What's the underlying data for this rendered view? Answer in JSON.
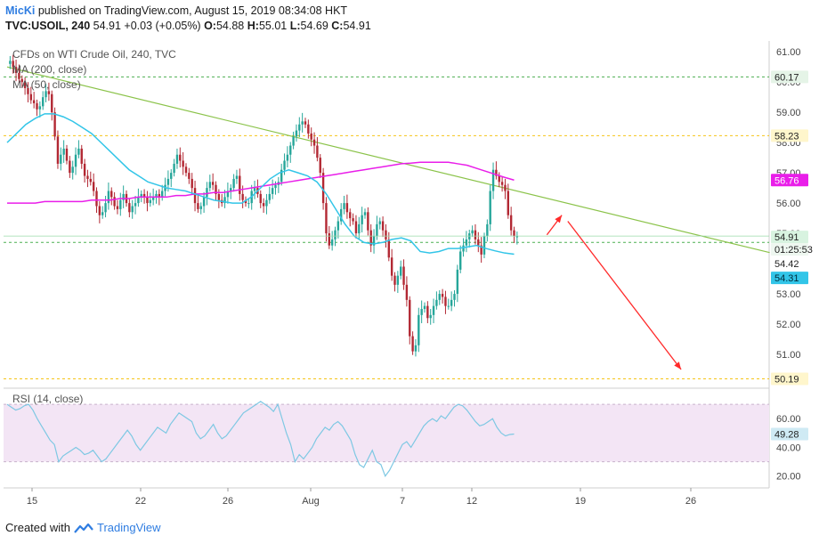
{
  "header": {
    "user": "MicKi",
    "published": "published on TradingView.com, August 15, 2019 08:34:08 HKT",
    "symbol": "TVC:USOIL, 240",
    "last": "54.91",
    "change": "+0.03 (+0.05%)",
    "o_label": "O:",
    "o": "54.88",
    "h_label": "H:",
    "h": "55.01",
    "l_label": "L:",
    "l": "54.69",
    "c_label": "C:",
    "c": "54.91"
  },
  "legend": {
    "instrument": "CFDs on WTI Crude Oil, 240, TVC",
    "ma200": "MA (200, close)",
    "ma50": "MA (50, close)",
    "rsi": "RSI (14, close)"
  },
  "footer": {
    "created_with": "Created with",
    "brand": "TradingView"
  },
  "colors": {
    "up": "#26a69a",
    "down": "#b22833",
    "ma200": "#e91ee9",
    "ma50": "#32c5e8",
    "trendline": "#8bc34a",
    "arrow": "#ff2a2a",
    "level_yellow": "#f5c518",
    "level_green": "#4caf50",
    "rsi_line": "#7ec8e3",
    "rsi_band": "#f3e5f5"
  },
  "chart_data": {
    "type": "candlestick",
    "price_axis": {
      "ticks": [
        "61.00",
        "60.00",
        "59.00",
        "58.00",
        "57.00",
        "56.00",
        "55.00",
        "54.00",
        "53.00",
        "52.00",
        "51.00"
      ],
      "ylim": [
        50.0,
        61.3
      ]
    },
    "rsi_axis": {
      "ticks": [
        "60.00",
        "40.00",
        "20.00"
      ],
      "ylim": [
        13,
        80
      ],
      "band": [
        30,
        70
      ]
    },
    "x_ticks": [
      "15",
      "22",
      "26",
      "Aug",
      "7",
      "12",
      "19",
      "26"
    ],
    "horizontal_levels": [
      {
        "value": 60.17,
        "label": "60.17",
        "style": "green-dashed"
      },
      {
        "value": 58.23,
        "label": "58.23",
        "style": "yellow-dashed"
      },
      {
        "value": 54.7,
        "label": "",
        "style": "green-dashed"
      },
      {
        "value": 50.19,
        "label": "50.19",
        "style": "yellow-dashed"
      }
    ],
    "price_labels": [
      {
        "value": 56.76,
        "text": "56.76",
        "kind": "ma200"
      },
      {
        "value": 54.91,
        "text": "54.91",
        "kind": "last"
      },
      {
        "value": 54.7,
        "text": "01:25:53",
        "kind": "countdown"
      },
      {
        "value": 54.42,
        "text": "54.42",
        "kind": "plain"
      },
      {
        "value": 54.31,
        "text": "54.31",
        "kind": "ma50"
      }
    ],
    "rsi_last": {
      "value": 49.28,
      "text": "49.28"
    },
    "price": [
      60.6,
      60.7,
      60.5,
      60.3,
      60.1,
      60.0,
      59.8,
      59.6,
      59.4,
      59.3,
      59.1,
      59.2,
      59.5,
      59.7,
      59.6,
      59.0,
      58.2,
      57.3,
      57.6,
      57.8,
      57.4,
      57.0,
      57.2,
      57.6,
      57.8,
      57.3,
      56.9,
      56.8,
      56.7,
      56.4,
      55.9,
      55.6,
      55.7,
      56.0,
      56.4,
      56.2,
      55.9,
      55.8,
      56.1,
      56.3,
      56.0,
      55.7,
      55.9,
      56.0,
      56.2,
      56.3,
      56.2,
      56.0,
      56.1,
      56.2,
      56.3,
      56.2,
      56.4,
      56.6,
      56.8,
      57.0,
      57.3,
      57.6,
      57.4,
      57.2,
      57.0,
      56.8,
      56.5,
      56.0,
      55.8,
      55.9,
      56.2,
      56.5,
      56.7,
      56.6,
      56.3,
      56.1,
      56.0,
      56.2,
      56.4,
      56.5,
      56.8,
      56.9,
      56.3,
      56.1,
      56.0,
      56.0,
      56.4,
      56.5,
      56.3,
      56.0,
      55.9,
      56.1,
      56.3,
      56.5,
      56.6,
      56.7,
      57.1,
      57.4,
      57.6,
      57.9,
      58.2,
      58.4,
      58.6,
      58.7,
      58.6,
      58.3,
      58.1,
      57.9,
      57.5,
      57.0,
      56.0,
      55.0,
      54.6,
      54.8,
      55.1,
      55.4,
      55.8,
      56.0,
      55.7,
      55.5,
      55.4,
      55.0,
      55.3,
      55.6,
      55.7,
      55.1,
      54.6,
      54.9,
      55.3,
      55.4,
      55.1,
      54.8,
      54.2,
      53.6,
      53.3,
      53.6,
      53.9,
      53.3,
      52.8,
      51.6,
      51.1,
      51.3,
      52.3,
      52.5,
      52.6,
      52.2,
      52.3,
      52.6,
      52.8,
      53.0,
      52.9,
      52.6,
      52.6,
      52.8,
      53.0,
      53.8,
      54.4,
      54.6,
      54.8,
      55.0,
      55.1,
      54.8,
      54.6,
      54.3,
      54.9,
      55.3,
      56.4,
      57.1,
      56.9,
      56.7,
      56.6,
      56.4,
      55.6,
      55.1,
      54.9,
      54.9
    ],
    "ma200": [
      56.0,
      56.0,
      56.0,
      56.0,
      56.05,
      56.05,
      56.05,
      56.05,
      56.05,
      56.1,
      56.1,
      56.1,
      56.15,
      56.15,
      56.2,
      56.2,
      56.2,
      56.2,
      56.25,
      56.25,
      56.3,
      56.3,
      56.35,
      56.35,
      56.4,
      56.45,
      56.5,
      56.55,
      56.6,
      56.65,
      56.7,
      56.75,
      56.8,
      56.85,
      56.9,
      56.95,
      57.0,
      57.05,
      57.1,
      57.15,
      57.2,
      57.25,
      57.3,
      57.32,
      57.35,
      57.35,
      57.35,
      57.35,
      57.3,
      57.25,
      57.15,
      57.05,
      56.95,
      56.85,
      56.76
    ],
    "ma50": [
      58.0,
      58.3,
      58.6,
      58.8,
      58.95,
      58.95,
      58.85,
      58.7,
      58.5,
      58.3,
      58.0,
      57.7,
      57.4,
      57.1,
      56.9,
      56.7,
      56.6,
      56.5,
      56.45,
      56.4,
      56.3,
      56.2,
      56.1,
      56.05,
      56.0,
      56.0,
      56.2,
      56.5,
      56.8,
      57.0,
      57.1,
      57.0,
      56.9,
      56.7,
      56.3,
      55.8,
      55.3,
      54.9,
      54.7,
      54.65,
      54.7,
      54.8,
      54.85,
      54.75,
      54.4,
      54.35,
      54.4,
      54.5,
      54.5,
      54.55,
      54.6,
      54.5,
      54.42,
      54.35,
      54.31
    ],
    "rsi": [
      70,
      68,
      66,
      67,
      69,
      70,
      66,
      60,
      55,
      50,
      45,
      42,
      30,
      34,
      36,
      38,
      40,
      38,
      35,
      36,
      38,
      34,
      30,
      32,
      36,
      40,
      44,
      48,
      52,
      48,
      42,
      38,
      42,
      46,
      50,
      54,
      52,
      50,
      56,
      60,
      64,
      62,
      60,
      58,
      50,
      46,
      48,
      52,
      56,
      50,
      46,
      48,
      52,
      56,
      60,
      64,
      66,
      68,
      70,
      72,
      70,
      68,
      65,
      70,
      60,
      50,
      42,
      30,
      35,
      32,
      36,
      40,
      46,
      50,
      54,
      52,
      56,
      58,
      55,
      50,
      45,
      35,
      28,
      26,
      32,
      38,
      30,
      28,
      20,
      24,
      30,
      36,
      42,
      44,
      40,
      45,
      50,
      55,
      58,
      60,
      58,
      62,
      60,
      64,
      68,
      70,
      69,
      66,
      62,
      58,
      55,
      56,
      58,
      60,
      54,
      50,
      48,
      49,
      49.28
    ],
    "trendline": {
      "from": [
        0,
        60.5
      ],
      "to": [
        196,
        55.1
      ]
    },
    "arrow_up": {
      "from": [
        181,
        54.95
      ],
      "to": [
        186,
        55.6
      ]
    },
    "arrow_down": {
      "from": [
        188,
        55.4
      ],
      "to": [
        226,
        50.5
      ]
    },
    "n_bars": 198
  }
}
